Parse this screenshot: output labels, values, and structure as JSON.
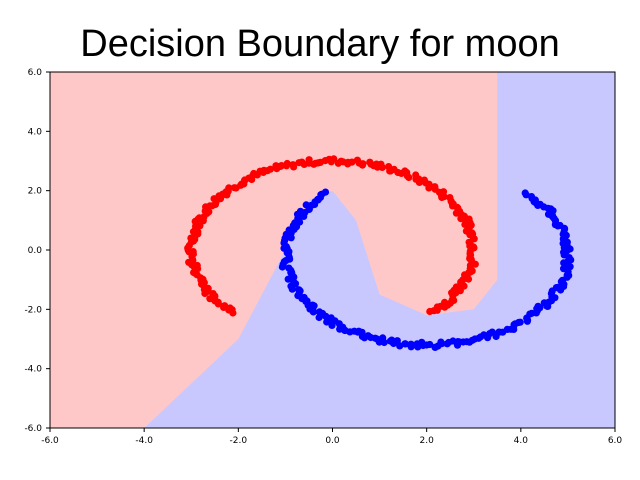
{
  "chart_data": {
    "type": "scatter",
    "title": "Decision Boundary for moon",
    "xlabel": "",
    "ylabel": "",
    "xlim": [
      -6.0,
      6.0
    ],
    "ylim": [
      -6.0,
      6.0
    ],
    "xticks": [
      "-6.0",
      "-4.0",
      "-2.0",
      "0.0",
      "2.0",
      "4.0",
      "6.0"
    ],
    "yticks": [
      "6.0",
      "4.0",
      "2.0",
      "0.0",
      "-2.0",
      "-4.0",
      "-6.0"
    ],
    "grid": false,
    "legend": "none",
    "background_regions": {
      "class_red_color": "#ffc8c8",
      "class_blue_color": "#c8c8ff",
      "boundary_points": [
        [
          -4.0,
          -6.0
        ],
        [
          -2.0,
          -3.0
        ],
        [
          -1.0,
          0.0
        ],
        [
          -0.5,
          1.7
        ],
        [
          0.0,
          2.0
        ],
        [
          0.5,
          1.0
        ],
        [
          1.0,
          -1.5
        ],
        [
          2.0,
          -2.2
        ],
        [
          3.0,
          -2.0
        ],
        [
          3.5,
          -1.0
        ],
        [
          3.5,
          6.0
        ]
      ]
    },
    "series": [
      {
        "color": "#ff0000",
        "arc": {
          "cx": 0.0,
          "cy": 0.0,
          "rx": 3.0,
          "ry": 3.0,
          "start_deg": 225,
          "end_deg": -45
        },
        "points": 220
      },
      {
        "color": "#0000ff",
        "arc": {
          "cx": 2.0,
          "cy": -0.2,
          "rx": 3.0,
          "ry": 3.0,
          "start_deg": 135,
          "end_deg": 405
        },
        "points": 220
      }
    ]
  }
}
